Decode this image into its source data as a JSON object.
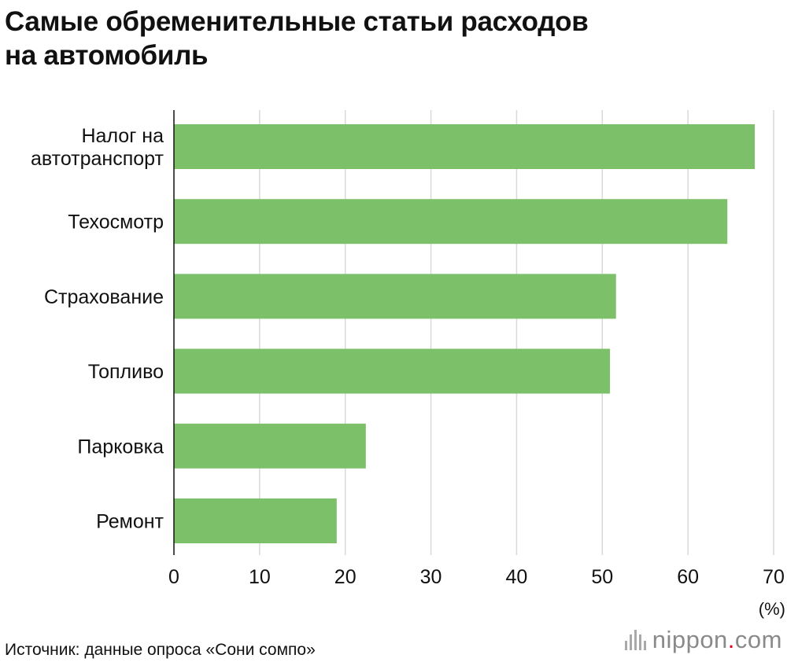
{
  "header": {
    "title_line1": "Самые обременительные статьи расходов",
    "title_line2": "на автомобиль"
  },
  "chart_data": {
    "type": "bar",
    "orientation": "horizontal",
    "title": "Самые обременительные статьи расходов на автомобиль",
    "categories": [
      [
        "Налог на",
        "автотранспорт"
      ],
      [
        "Техосмотр"
      ],
      [
        "Страхование"
      ],
      [
        "Топливо"
      ],
      [
        "Парковка"
      ],
      [
        "Ремонт"
      ]
    ],
    "values": [
      67.8,
      64.6,
      51.6,
      50.9,
      22.4,
      19.0
    ],
    "xlim": [
      0,
      70
    ],
    "xticks": [
      0,
      10,
      20,
      30,
      40,
      50,
      60,
      70
    ],
    "unit_label": "(%)",
    "grid": true,
    "bar_color": "#7dc06a",
    "grid_color": "#d9d9d9"
  },
  "footer": {
    "source": "Источник: данные опроса «Сони сомпо»",
    "brand_name": "nippon",
    "brand_dot": ".",
    "brand_tld": "com"
  }
}
